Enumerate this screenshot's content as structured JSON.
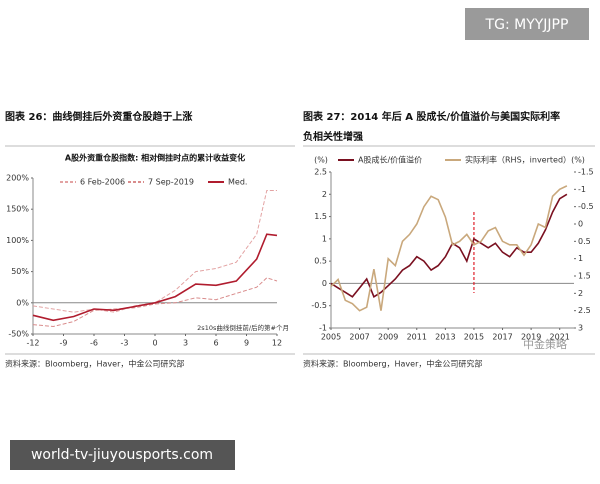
{
  "watermark_top": "TG: MYYJJPP",
  "footer_overlay": "world-tv-jiuyousports.com",
  "left_panel": {
    "title": "图表 26：曲线倒挂后外资重仓股趋于上涨",
    "source": "资料来源：Bloomberg，Haver，中金公司研究部"
  },
  "right_panel": {
    "title": [
      "图表 27：2014 年后 A 股成长/价值溢价与美国实际利率",
      "负相关性增强"
    ],
    "source": "资料来源：Bloomberg，Haver，中金公司研究部",
    "watermark": "中金策略"
  },
  "chart_data": [
    {
      "type": "line",
      "title": "A股外资重仓股指数: 相对倒挂时点的累计收益变化",
      "xlabel": "2s10s曲线倒挂前/后的第#个月",
      "x": [
        -12,
        -10,
        -8,
        -6,
        -4,
        -2,
        0,
        2,
        4,
        6,
        8,
        10,
        11,
        12
      ],
      "series": [
        {
          "name": "6 Feb-2006",
          "color": "#e3a3a3",
          "dash": true,
          "values": [
            -5,
            -10,
            -15,
            -10,
            -15,
            -5,
            0,
            20,
            50,
            55,
            65,
            110,
            180,
            180
          ]
        },
        {
          "name": "7 Sep-2019",
          "color": "#d98c8c",
          "dash": true,
          "values": [
            -35,
            -38,
            -30,
            -12,
            -10,
            -8,
            -2,
            0,
            8,
            5,
            15,
            25,
            40,
            35
          ]
        },
        {
          "name": "Med.",
          "color": "#b01c2e",
          "dash": false,
          "values": [
            -20,
            -28,
            -22,
            -10,
            -12,
            -6,
            0,
            10,
            30,
            28,
            35,
            70,
            110,
            108
          ]
        }
      ],
      "xlim": [
        -12,
        12
      ],
      "xticks": [
        -12,
        -9,
        -6,
        -3,
        0,
        3,
        6,
        9,
        12
      ],
      "ylim": [
        -50,
        200
      ],
      "yticks": [
        {
          "value": -50,
          "label": "-50%"
        },
        {
          "value": 0,
          "label": "0%"
        },
        {
          "value": 50,
          "label": "50%"
        },
        {
          "value": 100,
          "label": "100%"
        },
        {
          "value": 150,
          "label": "150%"
        },
        {
          "value": 200,
          "label": "200%"
        }
      ],
      "legend": "top"
    },
    {
      "type": "line",
      "ylabel": "(%)",
      "y2label": "(%)",
      "x": [
        2005,
        2005.5,
        2006,
        2006.5,
        2007,
        2007.5,
        2008,
        2008.5,
        2009,
        2009.5,
        2010,
        2010.5,
        2011,
        2011.5,
        2012,
        2012.5,
        2013,
        2013.5,
        2014,
        2014.5,
        2015,
        2015.5,
        2016,
        2016.5,
        2017,
        2017.5,
        2018,
        2018.5,
        2019,
        2019.5,
        2020,
        2020.5,
        2021,
        2021.5
      ],
      "series": [
        {
          "name": "A股成长/价值溢价",
          "color": "#7a1020",
          "values": [
            0,
            -0.1,
            -0.2,
            -0.3,
            -0.1,
            0.1,
            -0.3,
            -0.2,
            -0.05,
            0.1,
            0.3,
            0.4,
            0.6,
            0.5,
            0.3,
            0.4,
            0.6,
            0.9,
            0.8,
            0.5,
            1.0,
            0.9,
            0.8,
            0.9,
            0.7,
            0.6,
            0.8,
            0.7,
            0.7,
            0.9,
            1.2,
            1.6,
            1.9,
            2.0
          ]
        },
        {
          "name": "实际利率（RHS，inverted）",
          "color": "#c9a87c",
          "axis": "y2",
          "values": [
            1.8,
            1.6,
            2.2,
            2.3,
            2.5,
            2.4,
            1.3,
            2.5,
            1.0,
            1.2,
            0.5,
            0.3,
            0.0,
            -0.5,
            -0.8,
            -0.7,
            -0.2,
            0.6,
            0.5,
            0.3,
            0.6,
            0.5,
            0.2,
            0.1,
            0.5,
            0.6,
            0.6,
            0.9,
            0.6,
            0.0,
            0.1,
            -0.8,
            -1.0,
            -1.1
          ]
        }
      ],
      "xlim": [
        2005,
        2022
      ],
      "xticks": [
        2005,
        2007,
        2009,
        2011,
        2013,
        2015,
        2017,
        2019,
        2021
      ],
      "ylim": [
        -1,
        2.5
      ],
      "yticks": [
        -1,
        -0.5,
        0,
        0.5,
        1,
        1.5,
        2,
        2.5
      ],
      "y2lim": [
        3,
        -1.5
      ],
      "y2ticks": [
        -1.5,
        -1,
        -0.5,
        0,
        0.5,
        1,
        1.5,
        2,
        2.5,
        3
      ],
      "vline": 2015,
      "vline_color": "#e0202a",
      "legend": "top"
    }
  ]
}
